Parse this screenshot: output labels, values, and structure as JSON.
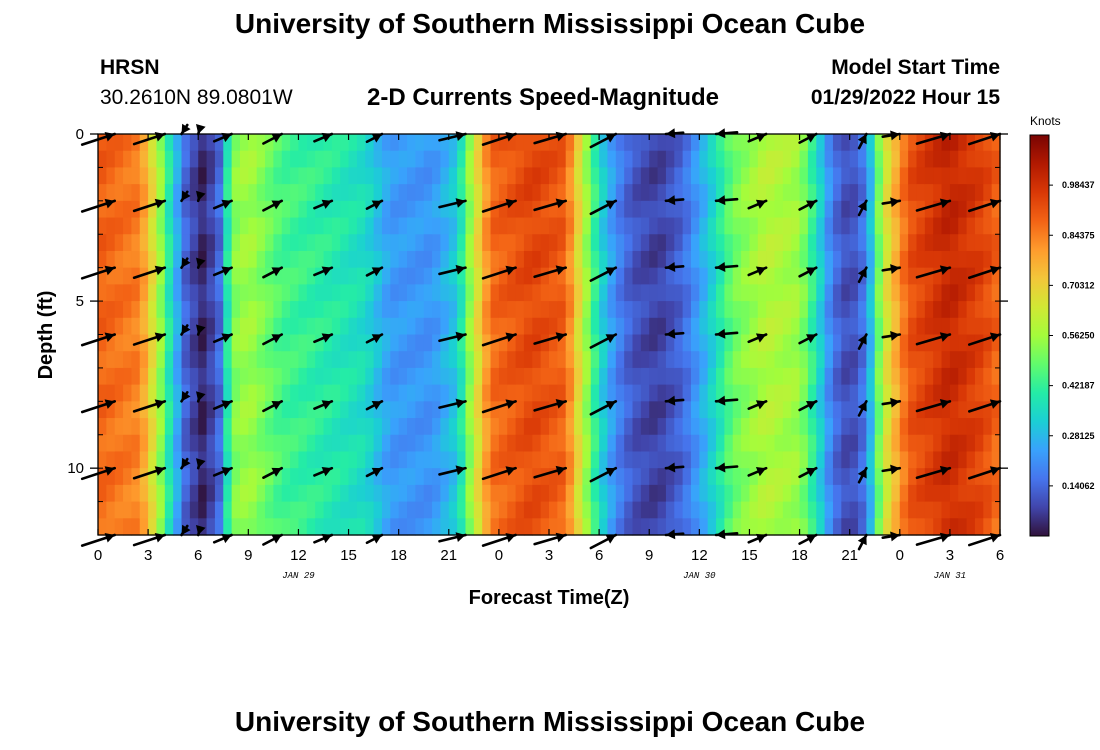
{
  "header": {
    "title": "University of Southern Mississippi Ocean Cube",
    "station": "HRSN",
    "coords": "30.2610N  89.0801W",
    "subtitle": "2-D Currents Speed-Magnitude",
    "model_start_label": "Model Start Time",
    "model_start_value": "01/29/2022 Hour 15"
  },
  "footer": {
    "title": "University of Southern Mississippi Ocean Cube"
  },
  "colors": {
    "scale": [
      "#30123b",
      "#4145ab",
      "#4675ed",
      "#39a2fc",
      "#1bcfd4",
      "#24eca6",
      "#61fc6c",
      "#a4fc3b",
      "#d1e834",
      "#f3c63a",
      "#fe9b2d",
      "#f36315",
      "#d93806",
      "#b11901",
      "#7a0403"
    ],
    "arrow": "#000000"
  },
  "chart_data": {
    "type": "heatmap",
    "xlabel": "Forecast Time(Z)",
    "ylabel": "Depth (ft)",
    "xlim": [
      0,
      54
    ],
    "ylim": [
      0,
      12
    ],
    "x_ticks": [
      0,
      3,
      6,
      9,
      12,
      15,
      18,
      21,
      24,
      27,
      30,
      33,
      36,
      39,
      42,
      45,
      48,
      51,
      54
    ],
    "x_tick_labels": [
      "0",
      "3",
      "6",
      "9",
      "12",
      "15",
      "18",
      "21",
      "0",
      "3",
      "6",
      "9",
      "12",
      "15",
      "18",
      "21",
      "0",
      "3",
      "6"
    ],
    "y_ticks": [
      0,
      5,
      10
    ],
    "y_tick_labels": [
      "0",
      "5",
      "10"
    ],
    "date_labels": [
      {
        "x": 12,
        "text": "JAN 29"
      },
      {
        "x": 36,
        "text": "JAN 30"
      },
      {
        "x": 51,
        "text": "JAN 31"
      }
    ],
    "colorbar": {
      "label": "Knots",
      "min": 0,
      "max": 1.125,
      "tick_values": [
        0.140625,
        0.28125,
        0.421875,
        0.5625,
        0.703125,
        0.84375,
        0.984375
      ],
      "tick_labels": [
        "0.14062",
        "0.28125",
        "0.42187",
        "0.56250",
        "0.70312",
        "0.84375",
        "0.98437"
      ]
    },
    "time_profile": [
      {
        "t": 0,
        "v": 0.9
      },
      {
        "t": 2.5,
        "v": 0.85
      },
      {
        "t": 3.5,
        "v": 0.62
      },
      {
        "t": 4.3,
        "v": 0.38
      },
      {
        "t": 5.2,
        "v": 0.14
      },
      {
        "t": 6.2,
        "v": 0.03
      },
      {
        "t": 7.2,
        "v": 0.12
      },
      {
        "t": 8.0,
        "v": 0.52
      },
      {
        "t": 9.0,
        "v": 0.57
      },
      {
        "t": 11,
        "v": 0.45
      },
      {
        "t": 14,
        "v": 0.4
      },
      {
        "t": 16,
        "v": 0.36
      },
      {
        "t": 17.5,
        "v": 0.23
      },
      {
        "t": 20,
        "v": 0.22
      },
      {
        "t": 21.5,
        "v": 0.32
      },
      {
        "t": 22.5,
        "v": 0.62
      },
      {
        "t": 23.5,
        "v": 0.88
      },
      {
        "t": 26,
        "v": 0.95
      },
      {
        "t": 28,
        "v": 0.9
      },
      {
        "t": 29,
        "v": 0.62
      },
      {
        "t": 30,
        "v": 0.36
      },
      {
        "t": 31,
        "v": 0.2
      },
      {
        "t": 32,
        "v": 0.11
      },
      {
        "t": 33.5,
        "v": 0.07
      },
      {
        "t": 35,
        "v": 0.14
      },
      {
        "t": 36.5,
        "v": 0.3
      },
      {
        "t": 38,
        "v": 0.5
      },
      {
        "t": 40,
        "v": 0.6
      },
      {
        "t": 42,
        "v": 0.56
      },
      {
        "t": 43,
        "v": 0.38
      },
      {
        "t": 44,
        "v": 0.16
      },
      {
        "t": 45,
        "v": 0.08
      },
      {
        "t": 46,
        "v": 0.18
      },
      {
        "t": 47,
        "v": 0.62
      },
      {
        "t": 48.5,
        "v": 0.92
      },
      {
        "t": 51,
        "v": 1.02
      },
      {
        "t": 53,
        "v": 0.95
      },
      {
        "t": 54,
        "v": 0.88
      }
    ],
    "arrow_rows": [
      1,
      4,
      8,
      12,
      16,
      20,
      24
    ],
    "arrow_times": [
      0,
      3,
      5,
      6,
      8,
      11,
      14,
      17,
      21,
      24,
      27,
      30,
      32,
      35,
      38,
      41,
      45,
      47,
      49,
      51
    ],
    "arrow_length_ft_per_knot": 2.3,
    "arrow_columns": [
      {
        "t": 1,
        "s": 0.9,
        "dir": 20
      },
      {
        "t": 4,
        "s": 0.85,
        "dir": 20
      },
      {
        "t": 5,
        "s": 0.3,
        "dir": 240
      },
      {
        "t": 6,
        "s": 0.2,
        "dir": 255
      },
      {
        "t": 8,
        "s": 0.5,
        "dir": 25
      },
      {
        "t": 11,
        "s": 0.55,
        "dir": 30
      },
      {
        "t": 14,
        "s": 0.5,
        "dir": 25
      },
      {
        "t": 17,
        "s": 0.45,
        "dir": 30
      },
      {
        "t": 22,
        "s": 0.7,
        "dir": 15
      },
      {
        "t": 25,
        "s": 0.9,
        "dir": 20
      },
      {
        "t": 28,
        "s": 0.85,
        "dir": 18
      },
      {
        "t": 31,
        "s": 0.75,
        "dir": 30
      },
      {
        "t": 34,
        "s": 0.45,
        "dir": 185
      },
      {
        "t": 37,
        "s": 0.55,
        "dir": 185
      },
      {
        "t": 40,
        "s": 0.5,
        "dir": 25
      },
      {
        "t": 43,
        "s": 0.5,
        "dir": 30
      },
      {
        "t": 46,
        "s": 0.45,
        "dir": 65
      },
      {
        "t": 48,
        "s": 0.45,
        "dir": 10
      },
      {
        "t": 51,
        "s": 0.9,
        "dir": 18
      },
      {
        "t": 54,
        "s": 0.85,
        "dir": 20
      }
    ]
  }
}
